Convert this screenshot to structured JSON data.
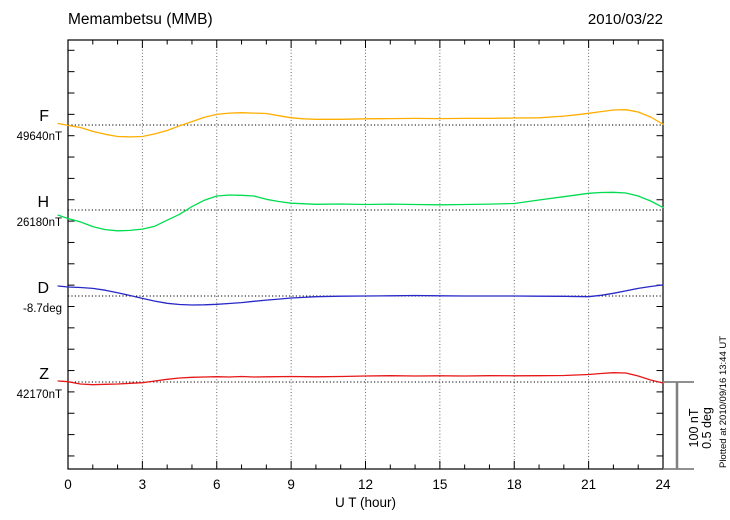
{
  "header": {
    "title": "Memambetsu (MMB)",
    "date": "2010/03/22"
  },
  "x_axis": {
    "label": "U T (hour)",
    "ticks": [
      "0",
      "3",
      "6",
      "9",
      "12",
      "15",
      "18",
      "21",
      "24"
    ]
  },
  "scale_bar": {
    "label_nt": "100 nT",
    "label_deg": "0.5 deg"
  },
  "footnote": "Plotted at 2010/09/16 13:44 UT",
  "chart_data": {
    "type": "line",
    "title": "Memambetsu (MMB)",
    "date": "2010/03/22",
    "xlabel": "U T (hour)",
    "x_range": [
      0,
      24
    ],
    "x_major_tick_step": 3,
    "x_minor_tick_step": 1,
    "grid_hours": [
      3,
      6,
      9,
      12,
      15,
      18,
      21
    ],
    "grid_style": "vertical dotted lines every 3 hours; dotted horizontal baseline per component",
    "scale_bar": {
      "nT": 100,
      "deg": 0.5
    },
    "series": [
      {
        "name": "F",
        "unit": "nT",
        "baseline_value_label": "49640nT",
        "color": "#FFAE00",
        "per_bar": 100,
        "points": [
          [
            -0.4,
            1.8
          ],
          [
            0,
            -0.5
          ],
          [
            0.5,
            -3
          ],
          [
            1,
            -7.5
          ],
          [
            1.5,
            -11
          ],
          [
            2,
            -13.5
          ],
          [
            2.5,
            -14
          ],
          [
            3,
            -13.5
          ],
          [
            3.5,
            -10.5
          ],
          [
            4,
            -6.5
          ],
          [
            4.5,
            -1
          ],
          [
            5,
            4
          ],
          [
            5.5,
            9
          ],
          [
            6,
            12.5
          ],
          [
            6.5,
            14
          ],
          [
            7,
            14.5
          ],
          [
            7.5,
            14
          ],
          [
            8,
            13.5
          ],
          [
            8.5,
            11
          ],
          [
            9,
            8.5
          ],
          [
            9.5,
            7.3
          ],
          [
            10,
            6.7
          ],
          [
            11,
            6.7
          ],
          [
            12,
            7.3
          ],
          [
            13,
            7.5
          ],
          [
            14,
            7.8
          ],
          [
            15,
            7.5
          ],
          [
            16,
            7.8
          ],
          [
            17,
            7.8
          ],
          [
            18,
            8.2
          ],
          [
            19,
            8.5
          ],
          [
            20,
            10.5
          ],
          [
            20.5,
            12
          ],
          [
            21,
            13.8
          ],
          [
            21.5,
            15.8
          ],
          [
            22,
            17.6
          ],
          [
            22.5,
            18
          ],
          [
            23,
            15.3
          ],
          [
            23.5,
            9.4
          ],
          [
            24,
            1
          ]
        ]
      },
      {
        "name": "H",
        "unit": "nT",
        "baseline_value_label": "26180nT",
        "color": "#00DC50",
        "per_bar": 100,
        "points": [
          [
            -0.4,
            -6
          ],
          [
            0,
            -10
          ],
          [
            0.5,
            -14
          ],
          [
            1,
            -19.5
          ],
          [
            1.5,
            -23
          ],
          [
            2,
            -24.5
          ],
          [
            2.5,
            -24
          ],
          [
            3,
            -22.5
          ],
          [
            3.5,
            -19
          ],
          [
            4,
            -12
          ],
          [
            4.5,
            -5
          ],
          [
            5,
            4
          ],
          [
            5.5,
            11.5
          ],
          [
            6,
            16.5
          ],
          [
            6.5,
            17.6
          ],
          [
            7,
            17.3
          ],
          [
            7.5,
            16.5
          ],
          [
            8,
            12.6
          ],
          [
            8.5,
            10
          ],
          [
            9,
            8
          ],
          [
            10,
            6.7
          ],
          [
            11,
            7.1
          ],
          [
            12,
            6.5
          ],
          [
            13,
            7
          ],
          [
            14,
            6.5
          ],
          [
            15,
            6.1
          ],
          [
            16,
            6.5
          ],
          [
            17,
            7
          ],
          [
            18,
            7.6
          ],
          [
            19,
            11.8
          ],
          [
            20,
            15.6
          ],
          [
            21,
            19.6
          ],
          [
            21.5,
            20.6
          ],
          [
            22,
            20.8
          ],
          [
            22.5,
            20
          ],
          [
            23,
            16.5
          ],
          [
            23.5,
            10.6
          ],
          [
            24,
            3
          ]
        ]
      },
      {
        "name": "D",
        "unit": "deg",
        "baseline_value_label": "-8.7deg",
        "color": "#2828C8",
        "per_bar": 0.5,
        "points": [
          [
            -0.4,
            0.059
          ],
          [
            0,
            0.053
          ],
          [
            0.5,
            0.05
          ],
          [
            1,
            0.045
          ],
          [
            1.5,
            0.034
          ],
          [
            2,
            0.019
          ],
          [
            2.5,
            0.003
          ],
          [
            3,
            -0.014
          ],
          [
            3.5,
            -0.03
          ],
          [
            4,
            -0.043
          ],
          [
            4.5,
            -0.05
          ],
          [
            5,
            -0.053
          ],
          [
            5.5,
            -0.052
          ],
          [
            6,
            -0.049
          ],
          [
            6.5,
            -0.044
          ],
          [
            7,
            -0.039
          ],
          [
            7.5,
            -0.031
          ],
          [
            8,
            -0.024
          ],
          [
            8.5,
            -0.018
          ],
          [
            9,
            -0.012
          ],
          [
            9.5,
            -0.008
          ],
          [
            10,
            -0.004
          ],
          [
            11,
            -0.001
          ],
          [
            12,
            0
          ],
          [
            13,
            0.001
          ],
          [
            14,
            0.003
          ],
          [
            15,
            0.001
          ],
          [
            16,
            0
          ],
          [
            17,
            0
          ],
          [
            18,
            0
          ],
          [
            19,
            -0.001
          ],
          [
            20,
            -0.002
          ],
          [
            21,
            -0.004
          ],
          [
            21.5,
            0.004
          ],
          [
            22,
            0.016
          ],
          [
            22.5,
            0.03
          ],
          [
            23,
            0.045
          ],
          [
            23.5,
            0.056
          ],
          [
            24,
            0.065
          ]
        ]
      },
      {
        "name": "Z",
        "unit": "nT",
        "baseline_value_label": "42170nT",
        "color": "#E61717",
        "per_bar": 100,
        "points": [
          [
            -0.4,
            1.2
          ],
          [
            0,
            0.4
          ],
          [
            0.5,
            -2.4
          ],
          [
            1,
            -3.2
          ],
          [
            1.5,
            -2.7
          ],
          [
            2,
            -2.4
          ],
          [
            2.5,
            -1.5
          ],
          [
            3,
            -0.8
          ],
          [
            3.5,
            1.2
          ],
          [
            4,
            3.2
          ],
          [
            4.5,
            4.7
          ],
          [
            5,
            5.5
          ],
          [
            5.5,
            5.9
          ],
          [
            6,
            6.2
          ],
          [
            6.5,
            5.9
          ],
          [
            7,
            6.5
          ],
          [
            7.5,
            5.9
          ],
          [
            8,
            6.1
          ],
          [
            9,
            6.5
          ],
          [
            10,
            6.1
          ],
          [
            11,
            6.5
          ],
          [
            12,
            7.1
          ],
          [
            13,
            7.4
          ],
          [
            14,
            7.1
          ],
          [
            15,
            7.3
          ],
          [
            16,
            7.1
          ],
          [
            17,
            7.4
          ],
          [
            18,
            7.3
          ],
          [
            19,
            7.4
          ],
          [
            20,
            7.6
          ],
          [
            21,
            8.8
          ],
          [
            21.5,
            10
          ],
          [
            22,
            10.9
          ],
          [
            22.5,
            10.6
          ],
          [
            23,
            7.1
          ],
          [
            23.5,
            2.4
          ],
          [
            24,
            -1.2
          ]
        ]
      }
    ],
    "footnote": "Plotted at 2010/09/16 13:44 UT"
  }
}
